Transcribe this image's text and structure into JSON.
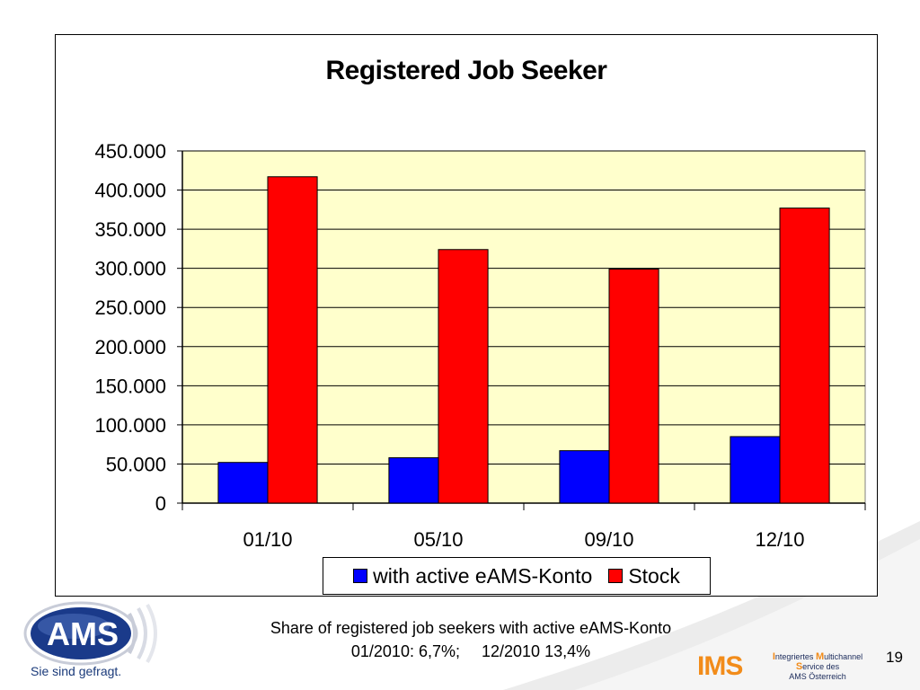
{
  "chart_data": {
    "type": "bar",
    "title": "Registered Job Seeker",
    "categories": [
      "01/10",
      "05/10",
      "09/10",
      "12/10"
    ],
    "series": [
      {
        "name": "with active eAMS-Konto",
        "values": [
          52000,
          58000,
          67000,
          85000
        ],
        "color": "#0000ff"
      },
      {
        "name": "Stock",
        "values": [
          417000,
          324000,
          299000,
          377000
        ],
        "color": "#ff0000"
      }
    ],
    "ylim": [
      0,
      450000
    ],
    "yticks": [
      0,
      50000,
      100000,
      150000,
      200000,
      250000,
      300000,
      350000,
      400000,
      450000
    ],
    "ytick_labels": [
      "0",
      "50.000",
      "100.000",
      "150.000",
      "200.000",
      "250.000",
      "300.000",
      "350.000",
      "400.000",
      "450.000"
    ],
    "plot_background": "#ffffcc",
    "grid": true,
    "legend_position": "bottom"
  },
  "caption": {
    "line1": "Share of registered job seekers with active eAMS-Konto",
    "line2a": "01/2010: 6,7%;",
    "line2b": "12/2010 13,4%"
  },
  "footer": {
    "ams_logo_text": "AMS",
    "slogan": "Sie sind gefragt.",
    "ims_logo_text": "IMS",
    "ims_line1_a": "I",
    "ims_line1_b": "ntegriertes ",
    "ims_line1_c": "M",
    "ims_line1_d": "ultichannel",
    "ims_line2_a": "S",
    "ims_line2_b": "ervice des",
    "ims_line3": "AMS Österreich",
    "page_number": "19"
  },
  "colors": {
    "ams_blue": "#1a3a8a",
    "ims_orange": "#f28c1a",
    "swoosh_gray": "#e6e6e6"
  }
}
